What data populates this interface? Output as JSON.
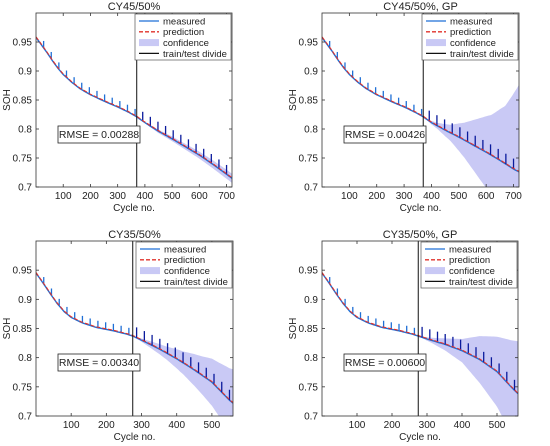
{
  "chart_data": [
    {
      "type": "line",
      "title": "CY45/50%",
      "xlabel": "Cycle no.",
      "ylabel": "SOH",
      "xlim": [
        0,
        720
      ],
      "ylim": [
        0.7,
        1.0
      ],
      "xticks": [
        100,
        200,
        300,
        400,
        500,
        600,
        700
      ],
      "yticks": [
        0.7,
        0.75,
        0.8,
        0.85,
        0.9,
        0.95
      ],
      "grid": false,
      "legend": "top-right",
      "legend_entries": [
        "measured",
        "prediction",
        "confidence",
        "train/test divide"
      ],
      "divide_x": 370,
      "rmse_label": "RMSE = 0.00288",
      "curve": [
        [
          0,
          0.958
        ],
        [
          20,
          0.945
        ],
        [
          40,
          0.932
        ],
        [
          60,
          0.918
        ],
        [
          80,
          0.905
        ],
        [
          100,
          0.894
        ],
        [
          130,
          0.881
        ],
        [
          160,
          0.87
        ],
        [
          200,
          0.859
        ],
        [
          250,
          0.848
        ],
        [
          300,
          0.838
        ],
        [
          340,
          0.829
        ],
        [
          370,
          0.821
        ],
        [
          400,
          0.811
        ],
        [
          450,
          0.796
        ],
        [
          500,
          0.783
        ],
        [
          550,
          0.769
        ],
        [
          600,
          0.755
        ],
        [
          650,
          0.739
        ],
        [
          700,
          0.722
        ],
        [
          720,
          0.715
        ]
      ],
      "confidence_halfwidth": [
        [
          370,
          0.0
        ],
        [
          450,
          0.003
        ],
        [
          550,
          0.005
        ],
        [
          650,
          0.007
        ],
        [
          720,
          0.008
        ]
      ],
      "measured_spikes": {
        "spacing": 28,
        "height_train": 0.012,
        "height_test": 0.016
      }
    },
    {
      "type": "line",
      "title": "CY45/50%, GP",
      "xlabel": "Cycle no.",
      "ylabel": "SOH",
      "xlim": [
        0,
        720
      ],
      "ylim": [
        0.7,
        1.0
      ],
      "xticks": [
        100,
        200,
        300,
        400,
        500,
        600,
        700
      ],
      "yticks": [
        0.7,
        0.75,
        0.8,
        0.85,
        0.9,
        0.95
      ],
      "grid": false,
      "legend": "top-right",
      "legend_entries": [
        "measured",
        "prediction",
        "confidence",
        "train/test divide"
      ],
      "divide_x": 370,
      "rmse_label": "RMSE = 0.00426",
      "curve": [
        [
          0,
          0.958
        ],
        [
          20,
          0.945
        ],
        [
          40,
          0.932
        ],
        [
          60,
          0.918
        ],
        [
          80,
          0.905
        ],
        [
          100,
          0.894
        ],
        [
          130,
          0.881
        ],
        [
          160,
          0.87
        ],
        [
          200,
          0.859
        ],
        [
          250,
          0.848
        ],
        [
          300,
          0.838
        ],
        [
          340,
          0.829
        ],
        [
          370,
          0.821
        ],
        [
          400,
          0.811
        ],
        [
          450,
          0.798
        ],
        [
          500,
          0.786
        ],
        [
          550,
          0.773
        ],
        [
          600,
          0.76
        ],
        [
          650,
          0.746
        ],
        [
          700,
          0.731
        ],
        [
          720,
          0.726
        ]
      ],
      "confidence_halfwidth": [
        [
          370,
          0.0
        ],
        [
          420,
          0.005
        ],
        [
          470,
          0.014
        ],
        [
          520,
          0.03
        ],
        [
          570,
          0.05
        ],
        [
          620,
          0.07
        ],
        [
          670,
          0.1
        ],
        [
          720,
          0.15
        ]
      ],
      "measured_spikes": {
        "spacing": 28,
        "height_train": 0.012,
        "height_test": 0.018
      }
    },
    {
      "type": "line",
      "title": "CY35/50%",
      "xlabel": "Cycle no.",
      "ylabel": "SOH",
      "xlim": [
        0,
        560
      ],
      "ylim": [
        0.7,
        1.0
      ],
      "xticks": [
        100,
        200,
        300,
        400,
        500
      ],
      "yticks": [
        0.7,
        0.75,
        0.8,
        0.85,
        0.9,
        0.95
      ],
      "grid": false,
      "legend": "top-right",
      "legend_entries": [
        "measured",
        "prediction",
        "confidence",
        "train/test divide"
      ],
      "divide_x": 275,
      "rmse_label": "RMSE = 0.00340",
      "curve": [
        [
          0,
          0.945
        ],
        [
          20,
          0.928
        ],
        [
          40,
          0.91
        ],
        [
          60,
          0.893
        ],
        [
          80,
          0.879
        ],
        [
          100,
          0.869
        ],
        [
          130,
          0.86
        ],
        [
          170,
          0.852
        ],
        [
          220,
          0.846
        ],
        [
          260,
          0.84
        ],
        [
          275,
          0.837
        ],
        [
          300,
          0.83
        ],
        [
          350,
          0.815
        ],
        [
          400,
          0.798
        ],
        [
          450,
          0.779
        ],
        [
          500,
          0.758
        ],
        [
          550,
          0.727
        ],
        [
          560,
          0.722
        ]
      ],
      "confidence_halfwidth": [
        [
          275,
          0.0
        ],
        [
          320,
          0.005
        ],
        [
          370,
          0.011
        ],
        [
          420,
          0.02
        ],
        [
          470,
          0.032
        ],
        [
          520,
          0.046
        ],
        [
          560,
          0.058
        ]
      ],
      "measured_spikes": {
        "spacing": 22,
        "height_train": 0.012,
        "height_test": 0.018
      }
    },
    {
      "type": "line",
      "title": "CY35/50%, GP",
      "xlabel": "Cycle no.",
      "ylabel": "SOH",
      "xlim": [
        0,
        560
      ],
      "ylim": [
        0.7,
        1.0
      ],
      "xticks": [
        100,
        200,
        300,
        400,
        500
      ],
      "yticks": [
        0.7,
        0.75,
        0.8,
        0.85,
        0.9,
        0.95
      ],
      "grid": false,
      "legend": "top-right",
      "legend_entries": [
        "measured",
        "prediction",
        "confidence",
        "train/test divide"
      ],
      "divide_x": 275,
      "rmse_label": "RMSE = 0.00600",
      "curve": [
        [
          0,
          0.945
        ],
        [
          20,
          0.928
        ],
        [
          40,
          0.91
        ],
        [
          60,
          0.893
        ],
        [
          80,
          0.879
        ],
        [
          100,
          0.869
        ],
        [
          130,
          0.86
        ],
        [
          170,
          0.852
        ],
        [
          220,
          0.846
        ],
        [
          260,
          0.84
        ],
        [
          275,
          0.837
        ],
        [
          300,
          0.832
        ],
        [
          350,
          0.823
        ],
        [
          400,
          0.812
        ],
        [
          450,
          0.797
        ],
        [
          500,
          0.776
        ],
        [
          540,
          0.75
        ],
        [
          560,
          0.738
        ]
      ],
      "confidence_halfwidth": [
        [
          275,
          0.0
        ],
        [
          310,
          0.004
        ],
        [
          350,
          0.01
        ],
        [
          400,
          0.02
        ],
        [
          450,
          0.04
        ],
        [
          500,
          0.06
        ],
        [
          540,
          0.08
        ],
        [
          560,
          0.09
        ]
      ],
      "measured_spikes": {
        "spacing": 22,
        "height_train": 0.012,
        "height_test": 0.018
      }
    }
  ],
  "colors": {
    "measured": "#1f6fd6",
    "prediction": "#e0312a",
    "confidence": "#c9c9f5",
    "divide": "#111111",
    "spike": "#0a1a9c"
  }
}
